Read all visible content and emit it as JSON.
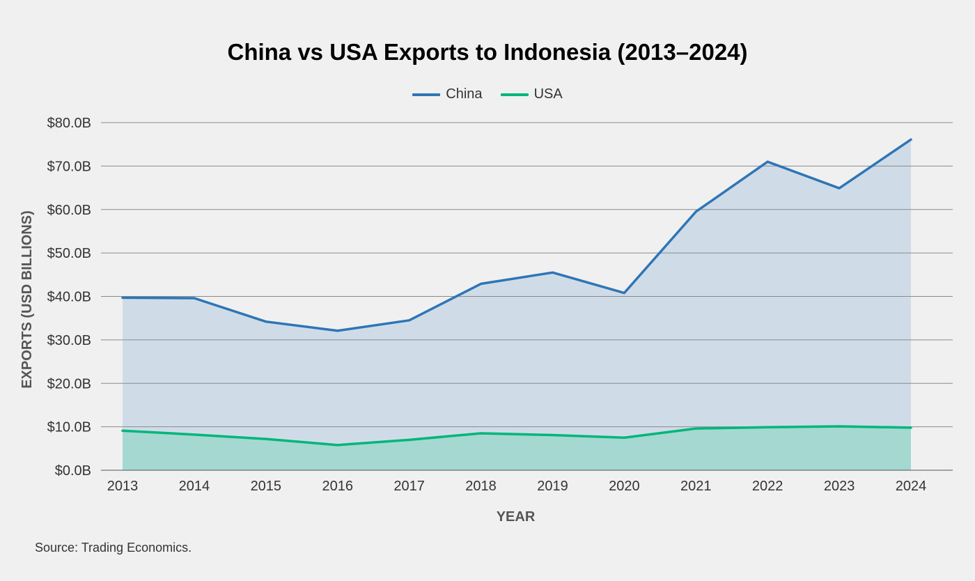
{
  "chart_data": {
    "type": "area",
    "title": "China vs USA Exports to Indonesia (2013–2024)",
    "xlabel": "YEAR",
    "ylabel": "EXPORTS (USD BILLIONS)",
    "categories": [
      "2013",
      "2014",
      "2015",
      "2016",
      "2017",
      "2018",
      "2019",
      "2020",
      "2021",
      "2022",
      "2023",
      "2024"
    ],
    "ylim": [
      0,
      80
    ],
    "yticks": [
      0,
      10,
      20,
      30,
      40,
      50,
      60,
      70,
      80
    ],
    "ytick_labels": [
      "$0.0B",
      "$10.0B",
      "$20.0B",
      "$30.0B",
      "$40.0B",
      "$50.0B",
      "$60.0B",
      "$70.0B",
      "$80.0B"
    ],
    "grid": true,
    "legend_position": "top-center",
    "series": [
      {
        "name": "China",
        "color": "#2e75b6",
        "fill": "#cfdce8",
        "values": [
          39.7,
          39.6,
          34.2,
          32.1,
          34.5,
          42.9,
          45.5,
          40.8,
          59.5,
          71.0,
          64.9,
          76.1
        ]
      },
      {
        "name": "USA",
        "color": "#00b67a",
        "fill": "#a5d8d1",
        "values": [
          9.1,
          8.2,
          7.2,
          5.8,
          7.0,
          8.5,
          8.1,
          7.5,
          9.6,
          9.9,
          10.1,
          9.8
        ]
      }
    ]
  },
  "source": "Source: Trading Economics."
}
